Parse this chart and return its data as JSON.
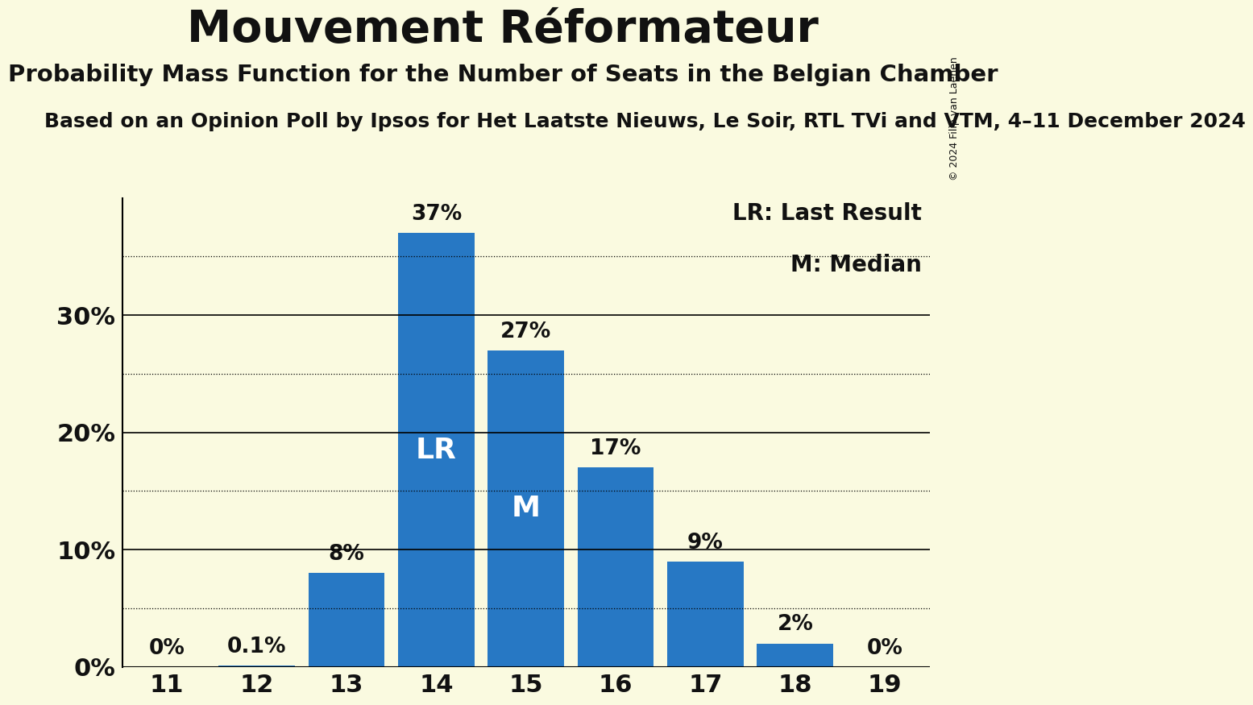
{
  "title": "Mouvement Réformateur",
  "subtitle": "Probability Mass Function for the Number of Seats in the Belgian Chamber",
  "source_line": "Based on an Opinion Poll by Ipsos for Het Laatste Nieuws, Le Soir, RTL TVi and VTM, 4–11 December 2024",
  "copyright": "© 2024 Filip van Laenen",
  "seats": [
    11,
    12,
    13,
    14,
    15,
    16,
    17,
    18,
    19
  ],
  "probabilities": [
    0.0,
    0.1,
    8.0,
    37.0,
    27.0,
    17.0,
    9.0,
    2.0,
    0.0
  ],
  "bar_color": "#2778C4",
  "background_color": "#FAFAE0",
  "bar_labels": [
    "0%",
    "0.1%",
    "8%",
    "37%",
    "27%",
    "17%",
    "9%",
    "2%",
    "0%"
  ],
  "LR_seat": 14,
  "Median_seat": 15,
  "LR_label": "LR",
  "M_label": "M",
  "legend_LR": "LR: Last Result",
  "legend_M": "M: Median",
  "dotted_yticks": [
    5,
    15,
    25,
    35
  ],
  "solid_yticks": [
    10,
    20,
    30
  ],
  "text_color": "#111111",
  "bar_label_fontsize": 19,
  "inside_label_fontsize": 26,
  "axis_tick_fontsize": 22,
  "title_fontsize": 40,
  "subtitle_fontsize": 21,
  "source_fontsize": 18,
  "legend_fontsize": 20,
  "copyright_fontsize": 9
}
